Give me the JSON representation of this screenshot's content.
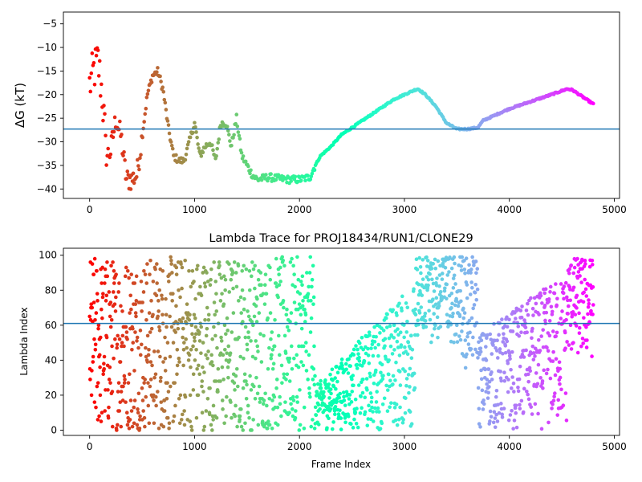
{
  "chart_data": [
    {
      "type": "scatter",
      "title": "",
      "xlabel": "",
      "ylabel": "ΔG (kT)",
      "xlim": [
        -250,
        5050
      ],
      "ylim": [
        -42,
        -2.5
      ],
      "xticks": [
        0,
        1000,
        2000,
        3000,
        4000,
        5000
      ],
      "yticks": [
        -5,
        -10,
        -15,
        -20,
        -25,
        -30,
        -35,
        -40
      ],
      "hline": -27.3,
      "hline_color": "#1f77b4",
      "colormap": "rainbow",
      "grid": false,
      "series": [
        {
          "values_key_frames": [
            0,
            40,
            80,
            120,
            160,
            200,
            250,
            300,
            350,
            400,
            450,
            500,
            550,
            600,
            650,
            700,
            750,
            800,
            850,
            900,
            950,
            1000,
            1050,
            1100,
            1150,
            1200,
            1250,
            1300,
            1350,
            1400,
            1450,
            1500,
            1550,
            1600,
            1700,
            1800,
            1900,
            2000,
            2100,
            2150,
            2200,
            2300,
            2400,
            2500,
            2600,
            2700,
            2800,
            2900,
            3000,
            3100,
            3130,
            3200,
            3300,
            3400,
            3500,
            3600,
            3700,
            3750,
            3800,
            3900,
            4000,
            4200,
            4400,
            4550,
            4600,
            4700,
            4800
          ],
          "values_dg": [
            -18,
            -15,
            -13,
            -20,
            -33,
            -32,
            -25,
            -29,
            -38,
            -38,
            -37,
            -29,
            -20,
            -16,
            -15,
            -19,
            -27,
            -33,
            -34,
            -34,
            -30,
            -26,
            -33,
            -31,
            -30,
            -34,
            -26,
            -26,
            -31,
            -25,
            -33,
            -35,
            -37,
            -38,
            -37.5,
            -37.8,
            -38,
            -38,
            -37.5,
            -35,
            -33,
            -31,
            -28.5,
            -27,
            -25.5,
            -24,
            -22.5,
            -21,
            -20,
            -19,
            -18.8,
            -20,
            -22.5,
            -26,
            -27.3,
            -27.3,
            -27,
            -25.5,
            -25,
            -24,
            -23,
            -21.5,
            -20,
            -18.8,
            -19,
            -20.5,
            -22
          ]
        }
      ]
    },
    {
      "type": "scatter",
      "title": "Lambda Trace for PROJ18434/RUN1/CLONE29",
      "xlabel": "Frame Index",
      "ylabel": "Lambda Index",
      "xlim": [
        -250,
        5050
      ],
      "ylim": [
        -3,
        104
      ],
      "xticks": [
        0,
        1000,
        2000,
        3000,
        4000,
        5000
      ],
      "yticks": [
        0,
        20,
        40,
        60,
        80,
        100
      ],
      "hline": 61,
      "hline_color": "#1f77b4",
      "colormap": "rainbow",
      "grid": false,
      "frame_range": [
        0,
        4800
      ],
      "lambda_range": [
        0,
        99
      ]
    }
  ]
}
